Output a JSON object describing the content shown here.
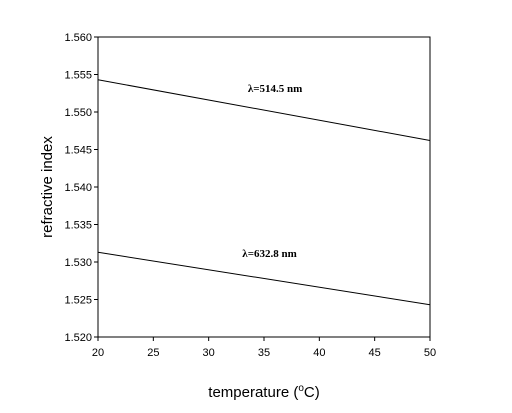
{
  "chart_data": {
    "type": "line",
    "title": "",
    "xlabel": "temperature (",
    "xlabel_sup": "o",
    "xlabel_unit": "C)",
    "ylabel": "refractive index",
    "xlim": [
      20,
      50
    ],
    "ylim": [
      1.52,
      1.56
    ],
    "x_ticks": [
      "20",
      "25",
      "30",
      "35",
      "40",
      "45",
      "50"
    ],
    "y_ticks": [
      "1.520",
      "1.525",
      "1.530",
      "1.535",
      "1.540",
      "1.545",
      "1.550",
      "1.555",
      "1.560"
    ],
    "grid": false,
    "legend": "none",
    "series": [
      {
        "name": "λ=514.5 nm",
        "x": [
          20,
          50
        ],
        "y": [
          1.5543,
          1.5462
        ],
        "label_at": [
          36,
          1.5527
        ]
      },
      {
        "name": "λ=632.8 nm",
        "x": [
          20,
          50
        ],
        "y": [
          1.5313,
          1.5243
        ],
        "label_at": [
          35.5,
          1.5307
        ]
      }
    ]
  }
}
